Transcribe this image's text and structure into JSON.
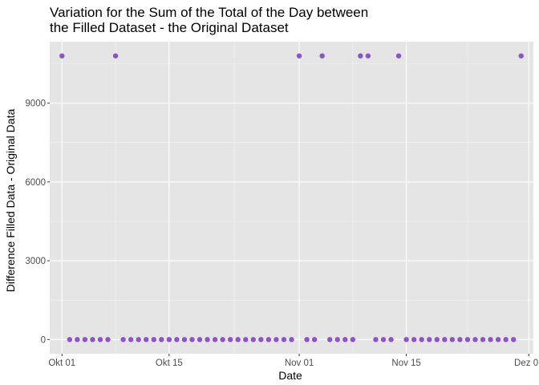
{
  "chart_data": {
    "type": "scatter",
    "title_lines": [
      "Variation for the Sum of the Total of the Day between",
      "the Filled Dataset - the Original Dataset"
    ],
    "xlabel": "Date",
    "ylabel": "Difference Filled Data - Original Data",
    "x_start": "2019-10-01",
    "xlim_days": [
      -1.6,
      61.6
    ],
    "ylim": [
      -540,
      11340
    ],
    "x_ticks": [
      {
        "day": 0,
        "label": "Okt 01"
      },
      {
        "day": 14,
        "label": "Okt 15"
      },
      {
        "day": 31,
        "label": "Nov 01"
      },
      {
        "day": 45,
        "label": "Nov 15"
      },
      {
        "day": 61,
        "label": "Dez 01"
      }
    ],
    "y_ticks": [
      {
        "value": 0,
        "label": "0"
      },
      {
        "value": 3000,
        "label": "3000"
      },
      {
        "value": 6000,
        "label": "6000"
      },
      {
        "value": 9000,
        "label": "9000"
      }
    ],
    "point_color": "#8e53c7",
    "series": [
      {
        "name": "difference",
        "x_days": [
          0,
          1,
          2,
          3,
          4,
          5,
          6,
          7,
          8,
          9,
          10,
          11,
          12,
          13,
          14,
          15,
          16,
          17,
          18,
          19,
          20,
          21,
          22,
          23,
          24,
          25,
          26,
          27,
          28,
          29,
          30,
          31,
          32,
          33,
          34,
          35,
          36,
          37,
          38,
          39,
          40,
          41,
          42,
          43,
          44,
          45,
          46,
          47,
          48,
          49,
          50,
          51,
          52,
          53,
          54,
          55,
          56,
          57,
          58,
          59,
          60
        ],
        "values": [
          10800,
          0,
          0,
          0,
          0,
          0,
          0,
          10800,
          0,
          0,
          0,
          0,
          0,
          0,
          0,
          0,
          0,
          0,
          0,
          0,
          0,
          0,
          0,
          0,
          0,
          0,
          0,
          0,
          0,
          0,
          0,
          10800,
          0,
          0,
          10800,
          0,
          0,
          0,
          0,
          10800,
          10800,
          0,
          0,
          0,
          10800,
          0,
          0,
          0,
          0,
          0,
          0,
          0,
          0,
          0,
          0,
          0,
          0,
          0,
          0,
          0,
          10800
        ]
      }
    ]
  }
}
